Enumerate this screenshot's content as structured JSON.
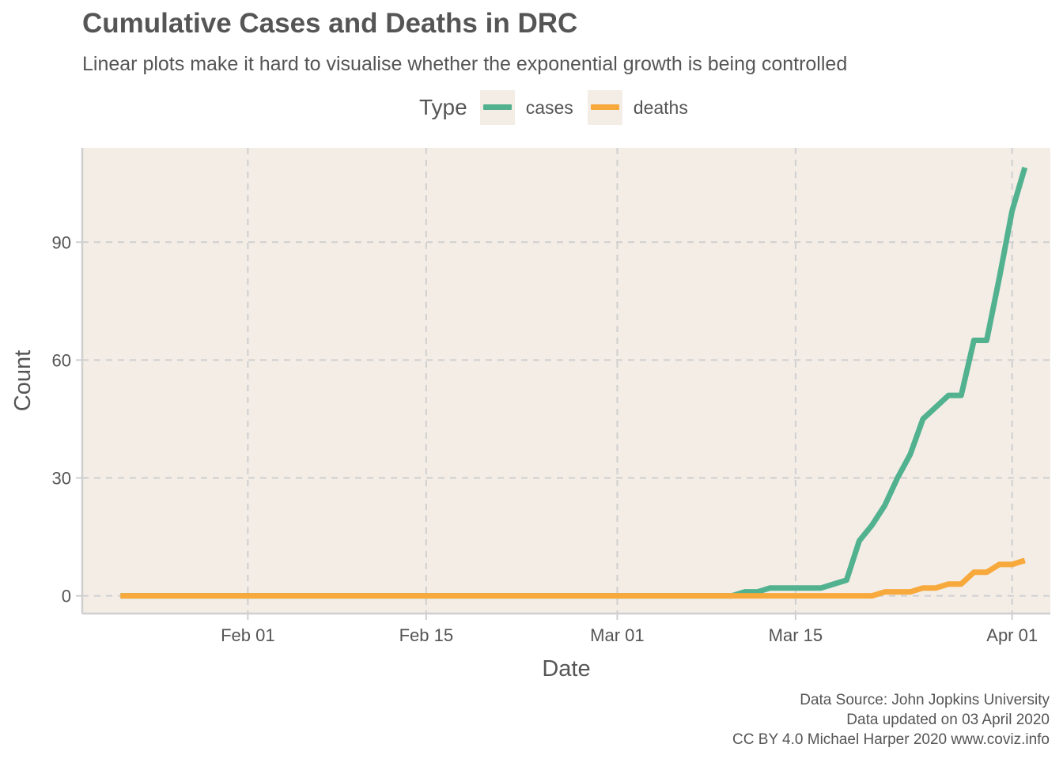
{
  "title": "Cumulative Cases and Deaths in DRC",
  "subtitle": "Linear plots make it hard to visualise whether the exponential growth is being controlled",
  "legend": {
    "title": "Type",
    "items": [
      {
        "label": "cases",
        "color": "#52b290"
      },
      {
        "label": "deaths",
        "color": "#f7a93b"
      }
    ]
  },
  "caption": {
    "line1": "Data Source: John Jopkins University",
    "line2": "Data updated on 03 April 2020",
    "line3": "CC BY 4.0 Michael Harper 2020 www.coviz.info"
  },
  "colors": {
    "panel": "#f3ede6",
    "grid": "#cfcfcf",
    "text": "#555555"
  },
  "chart_data": {
    "type": "line",
    "title": "Cumulative Cases and Deaths in DRC",
    "subtitle": "Linear plots make it hard to visualise whether the exponential growth is being controlled",
    "xlabel": "Date",
    "ylabel": "Count",
    "xlim": [
      "2020-01-19",
      "2020-04-04"
    ],
    "ylim": [
      -4.5,
      114
    ],
    "x_ticks": [
      {
        "date": "2020-02-01",
        "label": "Feb 01"
      },
      {
        "date": "2020-02-15",
        "label": "Feb 15"
      },
      {
        "date": "2020-03-01",
        "label": "Mar 01"
      },
      {
        "date": "2020-03-15",
        "label": "Mar 15"
      },
      {
        "date": "2020-04-01",
        "label": "Apr 01"
      }
    ],
    "y_ticks": [
      0,
      30,
      60,
      90
    ],
    "grid": true,
    "grid_style": "dashed",
    "legend_position": "top",
    "x_start": "2020-01-22",
    "x_end": "2020-04-01",
    "series": [
      {
        "name": "cases",
        "color": "#52b290",
        "values": [
          0,
          0,
          0,
          0,
          0,
          0,
          0,
          0,
          0,
          0,
          0,
          0,
          0,
          0,
          0,
          0,
          0,
          0,
          0,
          0,
          0,
          0,
          0,
          0,
          0,
          0,
          0,
          0,
          0,
          0,
          0,
          0,
          0,
          0,
          0,
          0,
          0,
          0,
          0,
          0,
          0,
          0,
          0,
          0,
          0,
          0,
          0,
          0,
          0,
          1,
          1,
          2,
          2,
          2,
          2,
          2,
          3,
          4,
          14,
          18,
          23,
          30,
          36,
          45,
          48,
          51,
          51,
          65,
          65,
          81,
          98,
          109
        ]
      },
      {
        "name": "deaths",
        "color": "#f7a93b",
        "values": [
          0,
          0,
          0,
          0,
          0,
          0,
          0,
          0,
          0,
          0,
          0,
          0,
          0,
          0,
          0,
          0,
          0,
          0,
          0,
          0,
          0,
          0,
          0,
          0,
          0,
          0,
          0,
          0,
          0,
          0,
          0,
          0,
          0,
          0,
          0,
          0,
          0,
          0,
          0,
          0,
          0,
          0,
          0,
          0,
          0,
          0,
          0,
          0,
          0,
          0,
          0,
          0,
          0,
          0,
          0,
          0,
          0,
          0,
          0,
          0,
          1,
          1,
          1,
          2,
          2,
          3,
          3,
          6,
          6,
          8,
          8,
          9
        ]
      }
    ]
  }
}
